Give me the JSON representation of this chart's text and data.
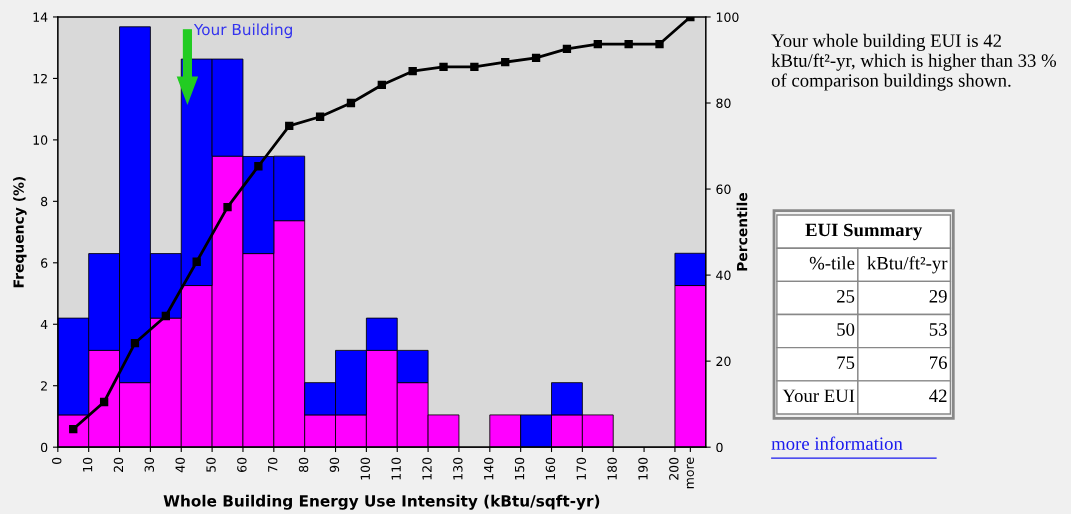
{
  "chart_data": [
    {
      "type": "bar",
      "xlabel": "Whole Building Energy Use Intensity (kBtu/sqft-yr)",
      "ylabel": "Frequency (%)",
      "y2label": "Percentile",
      "x": [
        5,
        15,
        25,
        35,
        45,
        55,
        65,
        75,
        85,
        95,
        105,
        115,
        125,
        135,
        145,
        155,
        165,
        175,
        185,
        195,
        205
      ],
      "stacked": true,
      "series": [
        {
          "color": "#ff00ff",
          "values": [
            1.05,
            3.15,
            2.1,
            4.2,
            5.26,
            9.47,
            6.3,
            7.37,
            1.05,
            1.05,
            3.15,
            2.1,
            1.05,
            0,
            1.05,
            0,
            1.05,
            1.05,
            0,
            0,
            5.26
          ]
        },
        {
          "color": "#0000ff",
          "values": [
            3.15,
            3.15,
            11.58,
            2.1,
            7.37,
            3.16,
            3.16,
            2.1,
            1.05,
            2.1,
            1.05,
            1.05,
            0,
            0,
            0,
            1.05,
            1.05,
            0,
            0,
            0,
            1.05
          ]
        },
        {
          "type": "line",
          "axis": "y2",
          "color": "#000000",
          "marker": "square",
          "line_style": "solid",
          "values": [
            4.2,
            10.5,
            24.2,
            30.5,
            43.1,
            55.8,
            65.3,
            74.7,
            76.8,
            80.0,
            84.2,
            87.4,
            88.4,
            88.4,
            89.5,
            90.5,
            92.6,
            93.7,
            93.7,
            93.7,
            100
          ]
        }
      ],
      "xlim": [
        0,
        210
      ],
      "xticks": [
        0,
        10,
        20,
        30,
        40,
        50,
        60,
        70,
        80,
        90,
        100,
        110,
        120,
        130,
        140,
        150,
        160,
        170,
        180,
        190,
        200,
        {
          "value": 205,
          "label": "more"
        }
      ],
      "ylim": [
        0,
        14
      ],
      "yticks": [
        0,
        2,
        4,
        6,
        8,
        10,
        12,
        14
      ],
      "y2lim": [
        0,
        100
      ],
      "y2ticks": [
        0,
        20,
        40,
        60,
        80,
        100
      ],
      "grid": false,
      "legend": false,
      "annotations": [
        "Your Building"
      ]
    },
    {
      "type": "other",
      "annotations": [
        "Your whole building EUI is 42 kBtu/ft²-yr, which is higher than 33 % of comparison buildings shown.",
        "EUI Summary",
        "%-tile",
        "kBtu/ft²-yr",
        "25",
        "29",
        "50",
        "53",
        "75",
        "76",
        "Your EUI",
        "42",
        "more information"
      ]
    }
  ]
}
